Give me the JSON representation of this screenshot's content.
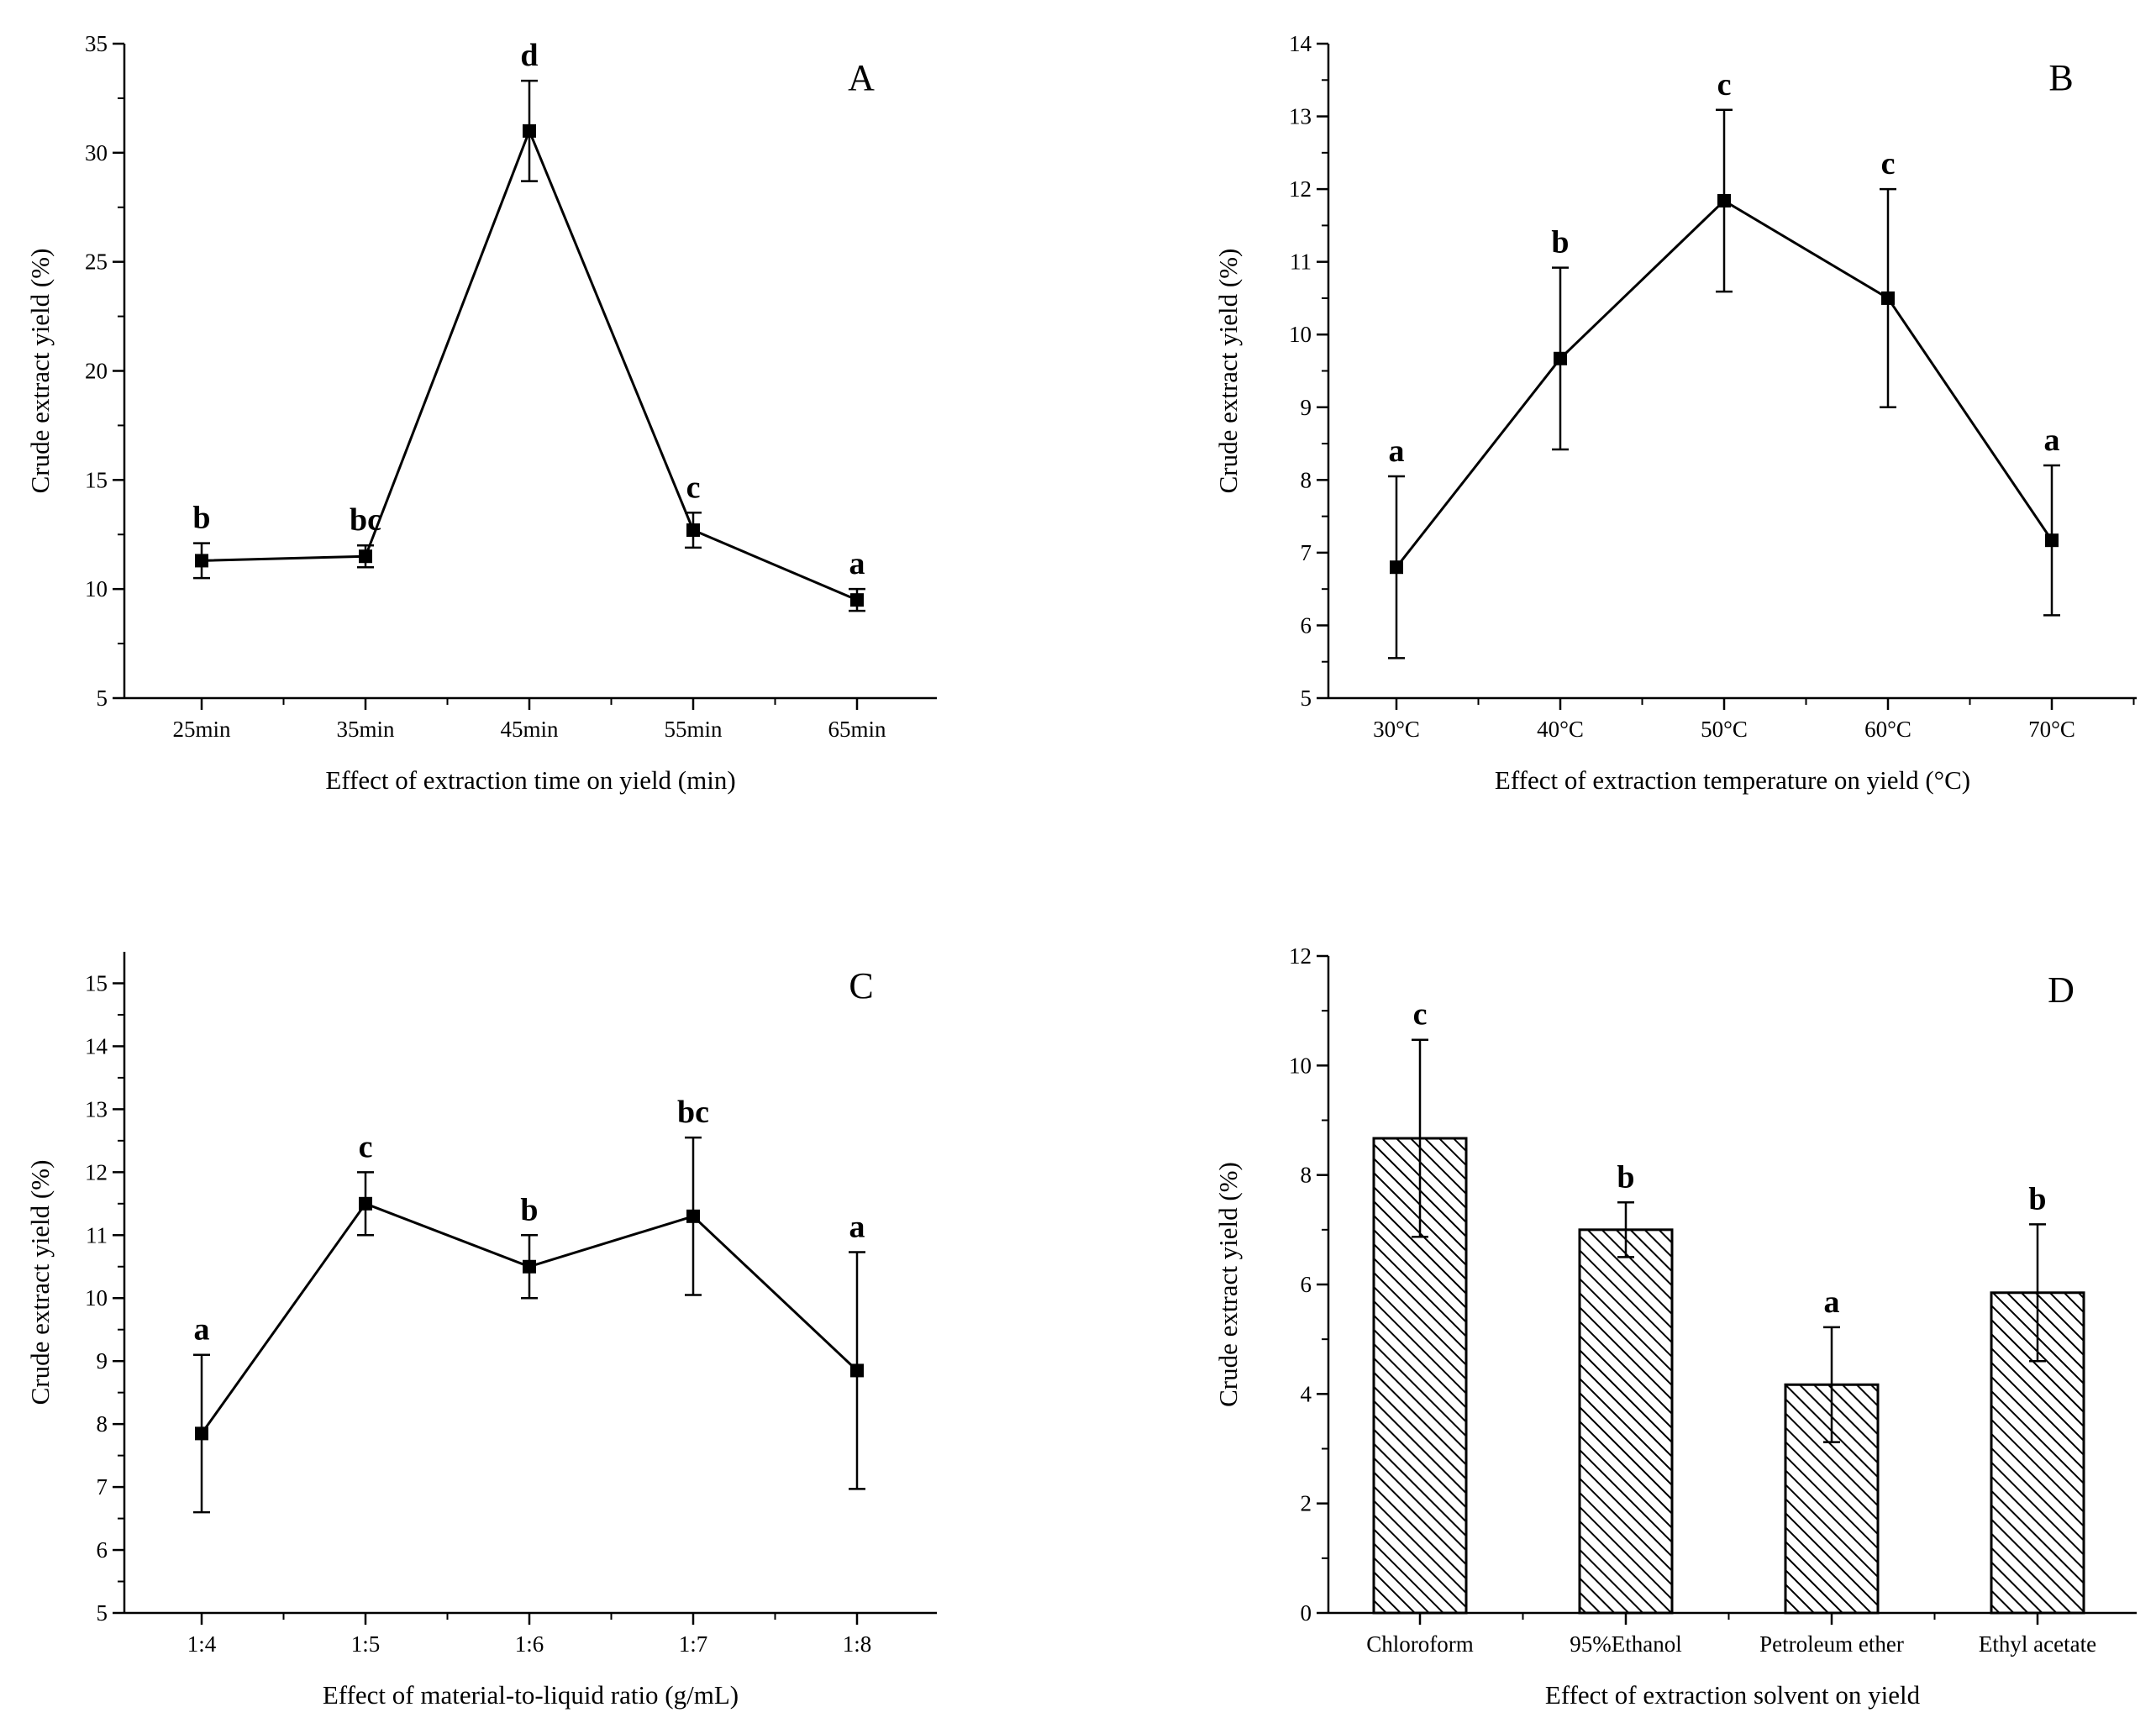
{
  "figure": {
    "background": "#ffffff",
    "line_color": "#000000"
  },
  "chart_data": [
    {
      "id": "A",
      "type": "line",
      "panel_label": "A",
      "title": "",
      "xlabel": "Effect of extraction time on yield  (min)",
      "ylabel": "Crude extract yield (%)",
      "categories": [
        "25min",
        "35min",
        "45min",
        "55min",
        "65min"
      ],
      "series": [
        {
          "name": "yield",
          "values": [
            11.3,
            11.5,
            31.0,
            12.7,
            9.5
          ],
          "errors": [
            0.8,
            0.5,
            2.3,
            0.8,
            0.5
          ]
        }
      ],
      "labels": [
        "b",
        "bc",
        "d",
        "c",
        "a"
      ],
      "ylim": [
        5,
        35
      ],
      "yticks": [
        5,
        10,
        15,
        20,
        25,
        30,
        35
      ],
      "grid": false
    },
    {
      "id": "B",
      "type": "line",
      "panel_label": "B",
      "title": "",
      "xlabel": "Effect of extraction temperature on yield  (°C)",
      "ylabel": "Crude extract yield (%)",
      "categories": [
        "30°C",
        "40°C",
        "50°C",
        "60°C",
        "70°C"
      ],
      "series": [
        {
          "name": "yield",
          "values": [
            6.8,
            9.67,
            11.84,
            10.5,
            7.17
          ],
          "errors": [
            1.25,
            1.25,
            1.25,
            1.5,
            1.03
          ]
        }
      ],
      "labels": [
        "a",
        "b",
        "c",
        "c",
        "a"
      ],
      "ylim": [
        5,
        14
      ],
      "yticks": [
        5,
        6,
        7,
        8,
        9,
        10,
        11,
        12,
        13,
        14
      ],
      "grid": false
    },
    {
      "id": "C",
      "type": "line",
      "panel_label": "C",
      "title": "",
      "xlabel": "Effect of material-to-liquid ratio  (g/mL)",
      "ylabel": "Crude extract yield (%)",
      "categories": [
        "1:4",
        "1:5",
        "1:6",
        "1:7",
        "1:8"
      ],
      "series": [
        {
          "name": "yield",
          "values": [
            7.85,
            11.5,
            10.5,
            11.3,
            8.85
          ],
          "errors": [
            1.25,
            0.5,
            0.5,
            1.25,
            1.88
          ]
        }
      ],
      "labels": [
        "a",
        "c",
        "b",
        "bc",
        "a"
      ],
      "ylim": [
        5,
        15.5
      ],
      "yticks": [
        5,
        6,
        7,
        8,
        9,
        10,
        11,
        12,
        13,
        14,
        15
      ],
      "grid": false
    },
    {
      "id": "D",
      "type": "bar",
      "panel_label": "D",
      "title": "",
      "xlabel": "Effect of extraction solvent on yield",
      "ylabel": "Crude extract yield (%)",
      "categories": [
        "Chloroform",
        "95%Ethanol",
        "Petroleum ether",
        "Ethyl acetate"
      ],
      "series": [
        {
          "name": "yield",
          "values": [
            8.67,
            7.0,
            4.17,
            5.85
          ],
          "errors": [
            1.8,
            0.5,
            1.05,
            1.25
          ]
        }
      ],
      "labels": [
        "c",
        "b",
        "a",
        "b"
      ],
      "ylim": [
        0,
        12
      ],
      "yticks": [
        0,
        2,
        4,
        6,
        8,
        10,
        12
      ],
      "grid": false
    }
  ]
}
